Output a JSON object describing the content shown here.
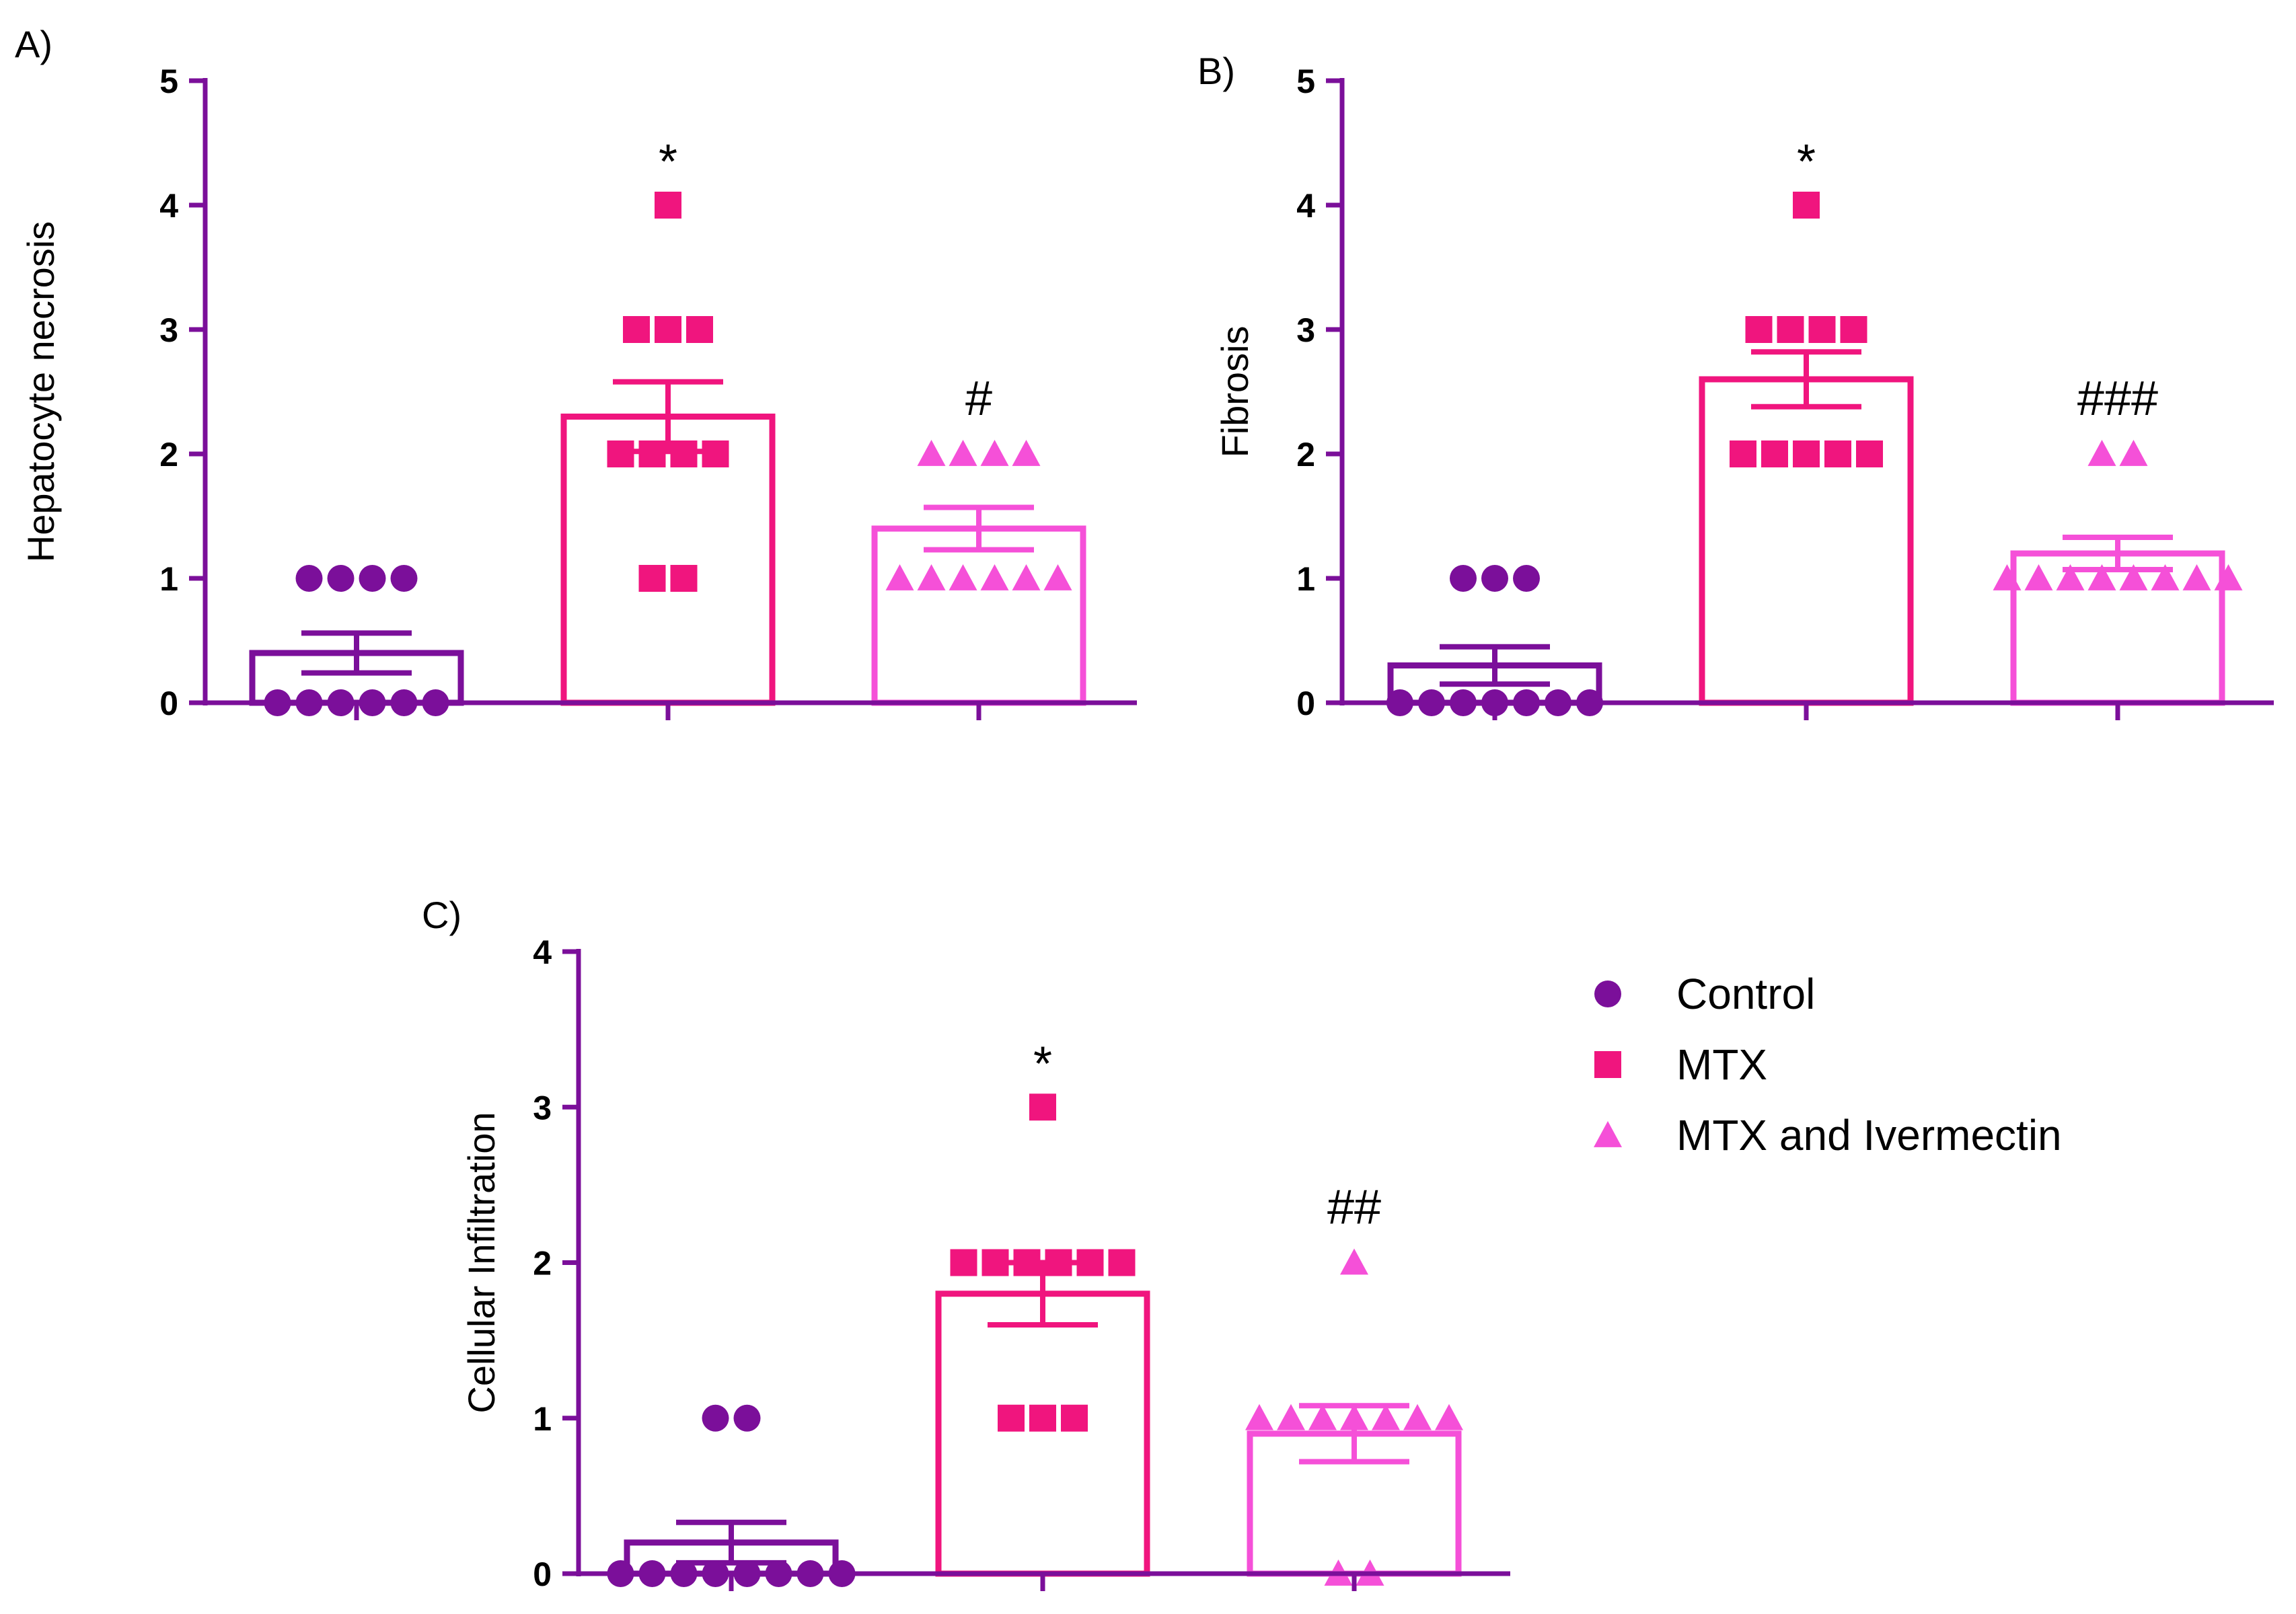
{
  "chart_data": [
    {
      "type": "bar",
      "panel": "A)",
      "ylabel": "Hepatocyte necrosis",
      "ylim": [
        0,
        5
      ],
      "yticks": [
        0,
        1,
        2,
        3,
        4,
        5
      ],
      "categories": [
        "Control",
        "MTX",
        "MTX and Ivermectin"
      ],
      "means": [
        0.4,
        2.3,
        1.4
      ],
      "sem": [
        0.16,
        0.28,
        0.17
      ],
      "points": [
        [
          0,
          0,
          0,
          0,
          0,
          0,
          1,
          1,
          1,
          1
        ],
        [
          1,
          1,
          2,
          2,
          2,
          2,
          3,
          3,
          3,
          4
        ],
        [
          1,
          1,
          1,
          1,
          1,
          1,
          2,
          2,
          2,
          2
        ]
      ],
      "annotations": [
        "",
        "*",
        "#"
      ]
    },
    {
      "type": "bar",
      "panel": "B)",
      "ylabel": "Fibrosis",
      "ylim": [
        0,
        5
      ],
      "yticks": [
        0,
        1,
        2,
        3,
        4,
        5
      ],
      "categories": [
        "Control",
        "MTX",
        "MTX and Ivermectin"
      ],
      "means": [
        0.3,
        2.6,
        1.2
      ],
      "sem": [
        0.15,
        0.22,
        0.13
      ],
      "points": [
        [
          0,
          0,
          0,
          0,
          0,
          0,
          0,
          1,
          1,
          1
        ],
        [
          2,
          2,
          2,
          2,
          2,
          3,
          3,
          3,
          3,
          4
        ],
        [
          1,
          1,
          1,
          1,
          1,
          1,
          1,
          1,
          2,
          2
        ]
      ],
      "annotations": [
        "",
        "*",
        "###"
      ]
    },
    {
      "type": "bar",
      "panel": "C)",
      "ylabel": "Cellular Infiltration",
      "ylim": [
        0,
        4
      ],
      "yticks": [
        0,
        1,
        2,
        3,
        4
      ],
      "categories": [
        "Control",
        "MTX",
        "MTX and Ivermectin"
      ],
      "means": [
        0.2,
        1.8,
        0.9
      ],
      "sem": [
        0.13,
        0.2,
        0.18
      ],
      "points": [
        [
          0,
          0,
          0,
          0,
          0,
          0,
          0,
          0,
          1,
          1
        ],
        [
          1,
          1,
          1,
          2,
          2,
          2,
          2,
          2,
          2,
          3
        ],
        [
          0,
          0,
          1,
          1,
          1,
          1,
          1,
          1,
          1,
          2
        ]
      ],
      "annotations": [
        "",
        "*",
        "##"
      ]
    }
  ],
  "legend": {
    "placement": "right of panel C",
    "items": [
      {
        "label": "Control",
        "marker": "circle",
        "color": "#7B0F9A"
      },
      {
        "label": "MTX",
        "marker": "square",
        "color": "#F0157E"
      },
      {
        "label": "MTX and Ivermectin",
        "marker": "triangle",
        "color": "#F550D8"
      }
    ]
  },
  "colors": {
    "axis": "#7B0F9A",
    "control": "#7B0F9A",
    "mtx": "#F0157E",
    "mtx_ivermectin": "#F550D8"
  }
}
